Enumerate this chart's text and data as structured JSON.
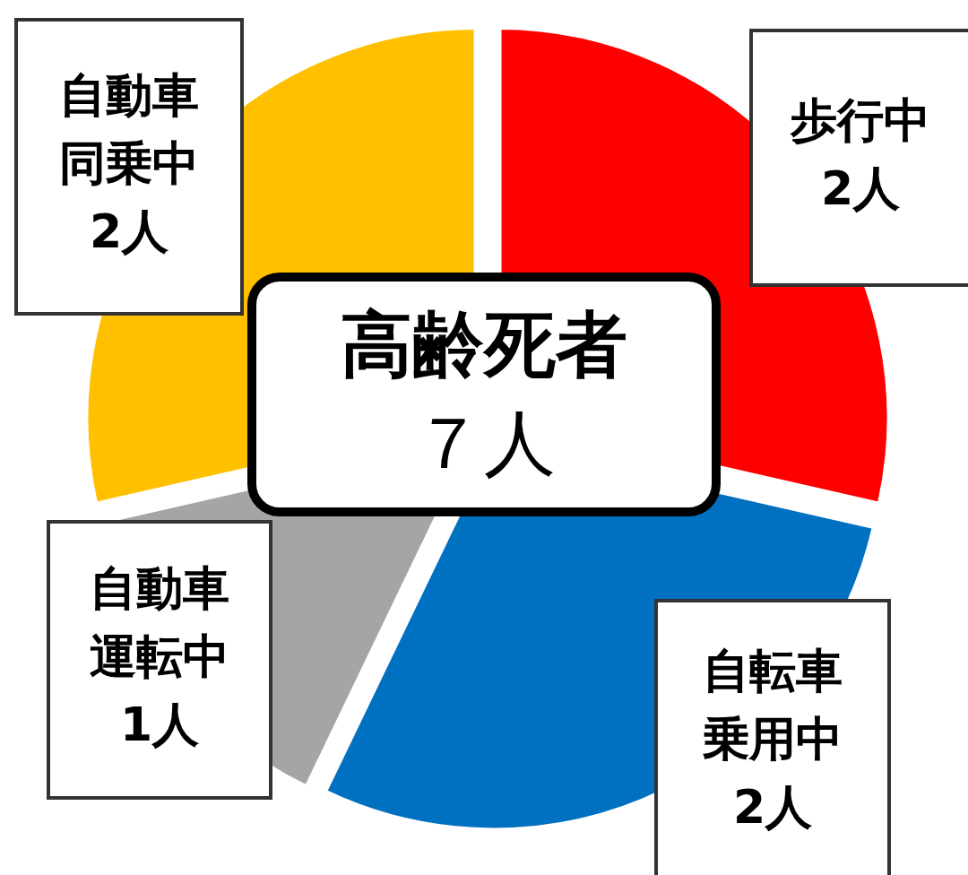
{
  "chart_data": {
    "type": "pie",
    "title": "高齢死者",
    "subtitle": "７人",
    "categories": [
      "歩行中",
      "自転車乗用中",
      "自動車運転中",
      "自動車同乗中"
    ],
    "values": [
      2,
      2,
      1,
      2
    ],
    "value_labels": [
      "2人",
      "2人",
      "1人",
      "2人"
    ],
    "colors": [
      "#ff0000",
      "#0070c0",
      "#a5a5a5",
      "#ffc000"
    ]
  }
}
